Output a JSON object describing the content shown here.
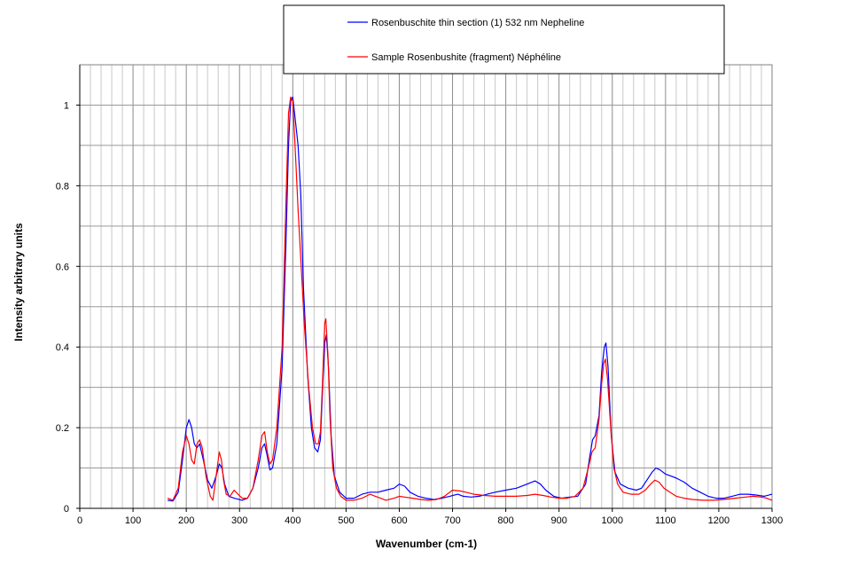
{
  "chart_data": {
    "type": "line",
    "xlabel": "Wavenumber (cm-1)",
    "ylabel": "Intensity  arbitrary units",
    "xlim": [
      0,
      1300
    ],
    "ylim": [
      0,
      1.1
    ],
    "x_ticks": [
      "0",
      "100",
      "200",
      "300",
      "400",
      "500",
      "600",
      "700",
      "800",
      "900",
      "1000",
      "1100",
      "1200",
      "1300"
    ],
    "y_ticks": [
      "0",
      "0.2",
      "0.4",
      "0.6",
      "0.8",
      "1"
    ],
    "grid": true,
    "legend_position": "top-center",
    "colors": {
      "series_1": "#0000ff",
      "series_2": "#ff0000",
      "grid": "#999999"
    },
    "series": [
      {
        "name": "Rosenbuschite thin section (1) 532 nm  Nepheline",
        "color": "#0000ff",
        "points": [
          [
            165,
            0.02
          ],
          [
            175,
            0.018
          ],
          [
            185,
            0.04
          ],
          [
            193,
            0.12
          ],
          [
            200,
            0.2
          ],
          [
            205,
            0.22
          ],
          [
            210,
            0.2
          ],
          [
            215,
            0.16
          ],
          [
            220,
            0.15
          ],
          [
            225,
            0.16
          ],
          [
            232,
            0.12
          ],
          [
            240,
            0.07
          ],
          [
            248,
            0.05
          ],
          [
            256,
            0.08
          ],
          [
            262,
            0.11
          ],
          [
            267,
            0.1
          ],
          [
            272,
            0.06
          ],
          [
            280,
            0.03
          ],
          [
            290,
            0.025
          ],
          [
            305,
            0.02
          ],
          [
            315,
            0.025
          ],
          [
            325,
            0.05
          ],
          [
            335,
            0.1
          ],
          [
            342,
            0.15
          ],
          [
            347,
            0.16
          ],
          [
            352,
            0.13
          ],
          [
            357,
            0.095
          ],
          [
            362,
            0.1
          ],
          [
            370,
            0.16
          ],
          [
            380,
            0.35
          ],
          [
            387,
            0.65
          ],
          [
            392,
            0.9
          ],
          [
            396,
            1.01
          ],
          [
            400,
            1.02
          ],
          [
            405,
            0.96
          ],
          [
            410,
            0.9
          ],
          [
            415,
            0.78
          ],
          [
            420,
            0.55
          ],
          [
            428,
            0.33
          ],
          [
            435,
            0.2
          ],
          [
            441,
            0.15
          ],
          [
            447,
            0.14
          ],
          [
            452,
            0.17
          ],
          [
            456,
            0.3
          ],
          [
            460,
            0.41
          ],
          [
            463,
            0.43
          ],
          [
            467,
            0.35
          ],
          [
            472,
            0.18
          ],
          [
            478,
            0.08
          ],
          [
            488,
            0.04
          ],
          [
            500,
            0.025
          ],
          [
            515,
            0.025
          ],
          [
            530,
            0.035
          ],
          [
            545,
            0.04
          ],
          [
            560,
            0.04
          ],
          [
            575,
            0.045
          ],
          [
            590,
            0.05
          ],
          [
            600,
            0.06
          ],
          [
            610,
            0.055
          ],
          [
            620,
            0.04
          ],
          [
            635,
            0.03
          ],
          [
            650,
            0.025
          ],
          [
            665,
            0.022
          ],
          [
            680,
            0.025
          ],
          [
            695,
            0.03
          ],
          [
            710,
            0.035
          ],
          [
            720,
            0.03
          ],
          [
            735,
            0.028
          ],
          [
            750,
            0.03
          ],
          [
            765,
            0.035
          ],
          [
            780,
            0.04
          ],
          [
            800,
            0.045
          ],
          [
            820,
            0.05
          ],
          [
            840,
            0.06
          ],
          [
            855,
            0.068
          ],
          [
            865,
            0.06
          ],
          [
            875,
            0.045
          ],
          [
            890,
            0.03
          ],
          [
            905,
            0.025
          ],
          [
            920,
            0.028
          ],
          [
            935,
            0.03
          ],
          [
            950,
            0.06
          ],
          [
            958,
            0.13
          ],
          [
            963,
            0.17
          ],
          [
            968,
            0.18
          ],
          [
            975,
            0.23
          ],
          [
            980,
            0.34
          ],
          [
            985,
            0.4
          ],
          [
            988,
            0.41
          ],
          [
            992,
            0.35
          ],
          [
            998,
            0.18
          ],
          [
            1005,
            0.09
          ],
          [
            1015,
            0.06
          ],
          [
            1030,
            0.05
          ],
          [
            1045,
            0.045
          ],
          [
            1055,
            0.05
          ],
          [
            1065,
            0.07
          ],
          [
            1075,
            0.09
          ],
          [
            1082,
            0.1
          ],
          [
            1090,
            0.095
          ],
          [
            1100,
            0.085
          ],
          [
            1110,
            0.08
          ],
          [
            1120,
            0.075
          ],
          [
            1135,
            0.065
          ],
          [
            1150,
            0.05
          ],
          [
            1165,
            0.04
          ],
          [
            1180,
            0.03
          ],
          [
            1195,
            0.025
          ],
          [
            1210,
            0.025
          ],
          [
            1225,
            0.03
          ],
          [
            1240,
            0.035
          ],
          [
            1255,
            0.035
          ],
          [
            1270,
            0.033
          ],
          [
            1285,
            0.03
          ],
          [
            1300,
            0.035
          ]
        ]
      },
      {
        "name": "Sample Rosenbushite (fragment) Néphéline",
        "color": "#ff0000",
        "points": [
          [
            165,
            0.025
          ],
          [
            175,
            0.02
          ],
          [
            185,
            0.05
          ],
          [
            193,
            0.14
          ],
          [
            200,
            0.18
          ],
          [
            205,
            0.16
          ],
          [
            210,
            0.12
          ],
          [
            215,
            0.11
          ],
          [
            220,
            0.16
          ],
          [
            225,
            0.17
          ],
          [
            230,
            0.15
          ],
          [
            237,
            0.08
          ],
          [
            245,
            0.03
          ],
          [
            250,
            0.02
          ],
          [
            256,
            0.08
          ],
          [
            262,
            0.14
          ],
          [
            266,
            0.12
          ],
          [
            270,
            0.07
          ],
          [
            275,
            0.035
          ],
          [
            282,
            0.03
          ],
          [
            290,
            0.045
          ],
          [
            297,
            0.035
          ],
          [
            305,
            0.025
          ],
          [
            315,
            0.025
          ],
          [
            325,
            0.05
          ],
          [
            335,
            0.12
          ],
          [
            342,
            0.18
          ],
          [
            347,
            0.19
          ],
          [
            352,
            0.14
          ],
          [
            357,
            0.11
          ],
          [
            362,
            0.12
          ],
          [
            370,
            0.2
          ],
          [
            380,
            0.4
          ],
          [
            387,
            0.75
          ],
          [
            392,
            0.98
          ],
          [
            396,
            1.02
          ],
          [
            400,
            1.01
          ],
          [
            405,
            0.88
          ],
          [
            410,
            0.74
          ],
          [
            415,
            0.62
          ],
          [
            422,
            0.45
          ],
          [
            430,
            0.3
          ],
          [
            437,
            0.2
          ],
          [
            443,
            0.16
          ],
          [
            448,
            0.16
          ],
          [
            452,
            0.19
          ],
          [
            456,
            0.32
          ],
          [
            460,
            0.46
          ],
          [
            462,
            0.47
          ],
          [
            466,
            0.38
          ],
          [
            470,
            0.22
          ],
          [
            475,
            0.1
          ],
          [
            482,
            0.05
          ],
          [
            490,
            0.03
          ],
          [
            500,
            0.02
          ],
          [
            515,
            0.02
          ],
          [
            530,
            0.025
          ],
          [
            545,
            0.035
          ],
          [
            555,
            0.03
          ],
          [
            565,
            0.025
          ],
          [
            575,
            0.02
          ],
          [
            590,
            0.025
          ],
          [
            600,
            0.03
          ],
          [
            610,
            0.028
          ],
          [
            625,
            0.025
          ],
          [
            640,
            0.022
          ],
          [
            655,
            0.02
          ],
          [
            670,
            0.022
          ],
          [
            685,
            0.03
          ],
          [
            700,
            0.045
          ],
          [
            715,
            0.043
          ],
          [
            725,
            0.04
          ],
          [
            740,
            0.035
          ],
          [
            760,
            0.032
          ],
          [
            780,
            0.03
          ],
          [
            800,
            0.03
          ],
          [
            820,
            0.03
          ],
          [
            840,
            0.032
          ],
          [
            855,
            0.035
          ],
          [
            870,
            0.032
          ],
          [
            885,
            0.028
          ],
          [
            900,
            0.025
          ],
          [
            915,
            0.025
          ],
          [
            930,
            0.03
          ],
          [
            945,
            0.05
          ],
          [
            955,
            0.1
          ],
          [
            962,
            0.14
          ],
          [
            968,
            0.15
          ],
          [
            975,
            0.22
          ],
          [
            980,
            0.31
          ],
          [
            984,
            0.36
          ],
          [
            987,
            0.37
          ],
          [
            991,
            0.32
          ],
          [
            997,
            0.2
          ],
          [
            1003,
            0.1
          ],
          [
            1010,
            0.06
          ],
          [
            1020,
            0.04
          ],
          [
            1035,
            0.035
          ],
          [
            1050,
            0.035
          ],
          [
            1062,
            0.045
          ],
          [
            1072,
            0.06
          ],
          [
            1080,
            0.07
          ],
          [
            1088,
            0.065
          ],
          [
            1097,
            0.05
          ],
          [
            1108,
            0.04
          ],
          [
            1120,
            0.03
          ],
          [
            1135,
            0.025
          ],
          [
            1150,
            0.022
          ],
          [
            1170,
            0.02
          ],
          [
            1190,
            0.02
          ],
          [
            1210,
            0.022
          ],
          [
            1230,
            0.025
          ],
          [
            1250,
            0.028
          ],
          [
            1265,
            0.03
          ],
          [
            1280,
            0.028
          ],
          [
            1290,
            0.025
          ],
          [
            1300,
            0.02
          ]
        ]
      }
    ]
  }
}
